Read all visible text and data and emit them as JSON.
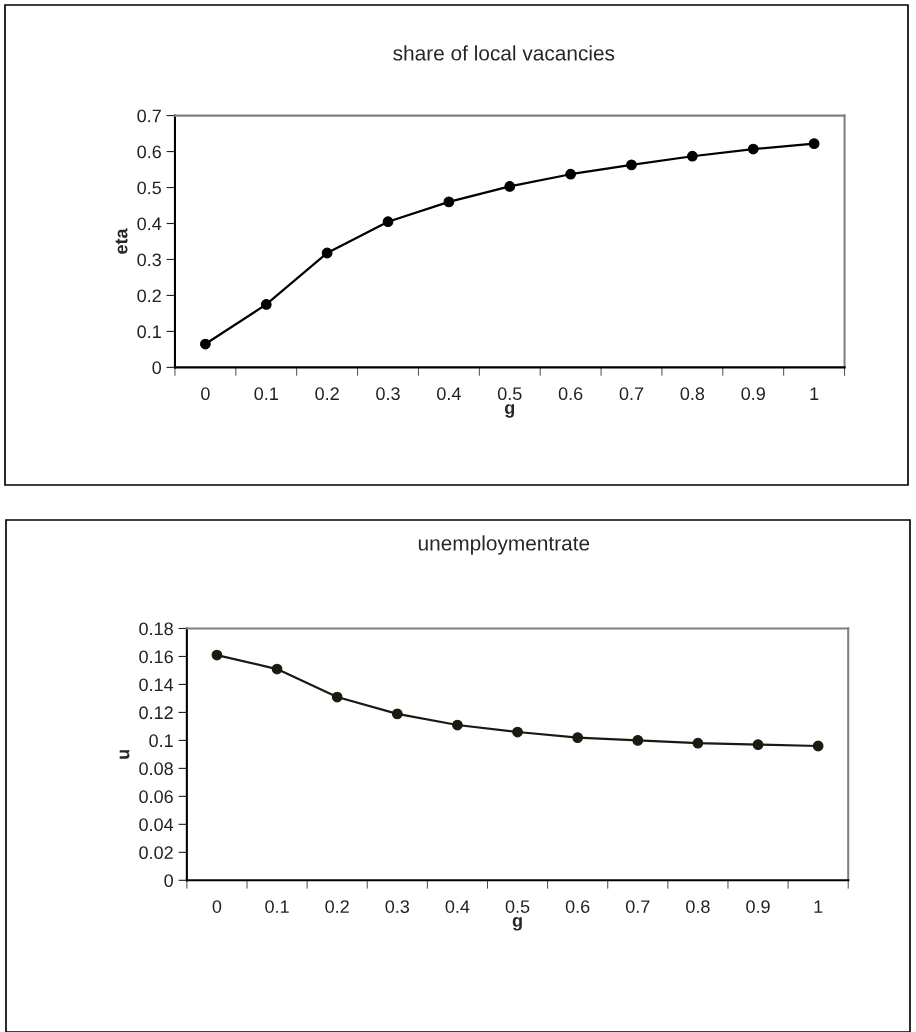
{
  "chart_data": [
    {
      "type": "line",
      "title": "share of local vacancies",
      "xlabel": "g",
      "ylabel": "eta",
      "categories": [
        "0",
        "0.1",
        "0.2",
        "0.3",
        "0.4",
        "0.5",
        "0.6",
        "0.7",
        "0.8",
        "0.9",
        "1"
      ],
      "series": [
        {
          "color": "#000000",
          "values": [
            0.065,
            0.175,
            0.318,
            0.405,
            0.46,
            0.503,
            0.537,
            0.563,
            0.587,
            0.607,
            0.622
          ]
        }
      ],
      "ylim": [
        0,
        0.7
      ],
      "yticks": [
        0,
        0.1,
        0.2,
        0.3,
        0.4,
        0.5,
        0.6,
        0.7
      ],
      "grid": false,
      "legend": false,
      "marker": "circle",
      "line_style": "solid"
    },
    {
      "type": "line",
      "title": "unemploymentrate",
      "xlabel": "g",
      "ylabel": "u",
      "categories": [
        "0",
        "0.1",
        "0.2",
        "0.3",
        "0.4",
        "0.5",
        "0.6",
        "0.7",
        "0.8",
        "0.9",
        "1"
      ],
      "series": [
        {
          "color": "#1a1a10",
          "values": [
            0.161,
            0.151,
            0.131,
            0.119,
            0.111,
            0.106,
            0.102,
            0.1,
            0.098,
            0.097,
            0.096
          ]
        }
      ],
      "ylim": [
        0,
        0.18
      ],
      "yticks": [
        0,
        0.02,
        0.04,
        0.06,
        0.08,
        0.1,
        0.12,
        0.14,
        0.16,
        0.18
      ],
      "grid": false,
      "legend": false,
      "marker": "circle",
      "line_style": "solid"
    }
  ]
}
